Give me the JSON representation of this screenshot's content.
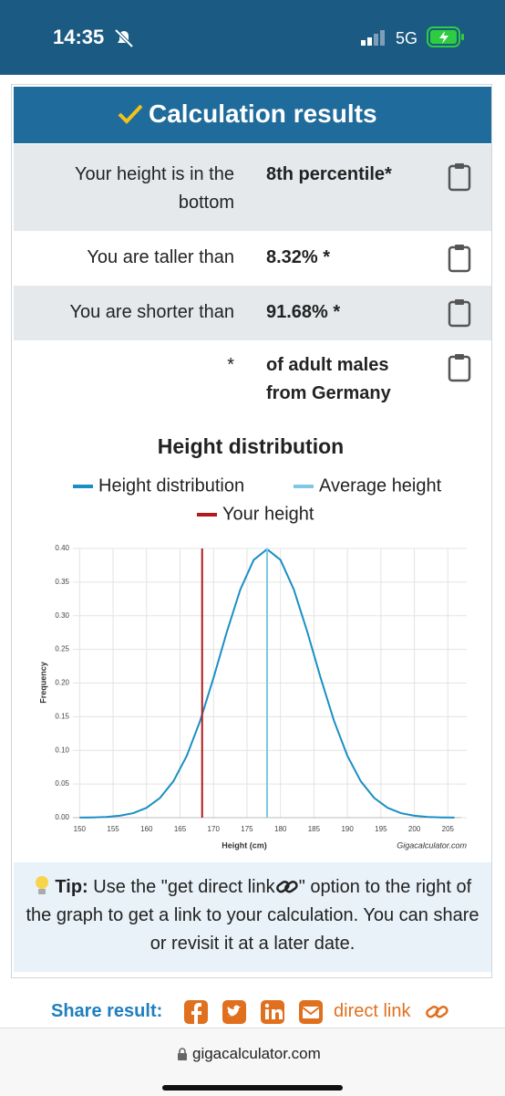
{
  "status": {
    "time": "14:35",
    "network": "5G"
  },
  "header": {
    "title": "Calculation results"
  },
  "results": [
    {
      "label": "Your height is in the bottom",
      "value": "8th percentile*"
    },
    {
      "label": "You are taller than",
      "value": "8.32% *"
    },
    {
      "label": "You are shorter than",
      "value": "91.68% *"
    },
    {
      "label": "*",
      "value": "of adult males from Germany"
    }
  ],
  "chart_data": {
    "type": "line",
    "title": "Height distribution",
    "x": [
      150,
      152,
      154,
      156,
      158,
      160,
      162,
      164,
      166,
      168,
      170,
      172,
      174,
      176,
      178,
      180,
      182,
      184,
      186,
      188,
      190,
      192,
      194,
      196,
      198,
      200,
      202,
      204,
      206
    ],
    "series": [
      {
        "name": "Height distribution",
        "color": "#1a8fc4",
        "values": [
          0.0001,
          0.0004,
          0.0011,
          0.0029,
          0.0067,
          0.0146,
          0.0293,
          0.054,
          0.0918,
          0.1438,
          0.2077,
          0.2764,
          0.3389,
          0.383,
          0.3989,
          0.383,
          0.3389,
          0.2764,
          0.2077,
          0.1438,
          0.0918,
          0.054,
          0.0293,
          0.0146,
          0.0067,
          0.0029,
          0.0011,
          0.0004,
          0.0001
        ]
      },
      {
        "name": "Average height",
        "color": "#7ec8e3",
        "x": [
          178
        ]
      },
      {
        "name": "Your height",
        "color": "#b01c1c",
        "x": [
          168.3
        ]
      }
    ],
    "xlabel": "Height (cm)",
    "ylabel": "Frequency",
    "credit": "Gigacalculator.com",
    "xlim": [
      149,
      207
    ],
    "ylim": [
      0,
      0.4
    ],
    "xticks": [
      150,
      155,
      160,
      165,
      170,
      175,
      180,
      185,
      190,
      195,
      200,
      205
    ],
    "yticks": [
      {
        "value": 0,
        "label": "0.00"
      },
      {
        "value": 0.05,
        "label": "0.05"
      },
      {
        "value": 0.1,
        "label": "0.10"
      },
      {
        "value": 0.15,
        "label": "0.15"
      },
      {
        "value": 0.2,
        "label": "0.20"
      },
      {
        "value": 0.25,
        "label": "0.25"
      },
      {
        "value": 0.3,
        "label": "0.30"
      },
      {
        "value": 0.35,
        "label": "0.35"
      },
      {
        "value": 0.4,
        "label": "0.40"
      }
    ],
    "grid": true
  },
  "tip": {
    "label": "Tip:",
    "text_before": "Use the \"get direct link",
    "text_after": "\" option to the right of the graph to get a link to your calculation. You can share or revisit it at a later date."
  },
  "share": {
    "label": "Share result:",
    "link": "direct link"
  },
  "browser": {
    "url": "gigacalculator.com"
  }
}
